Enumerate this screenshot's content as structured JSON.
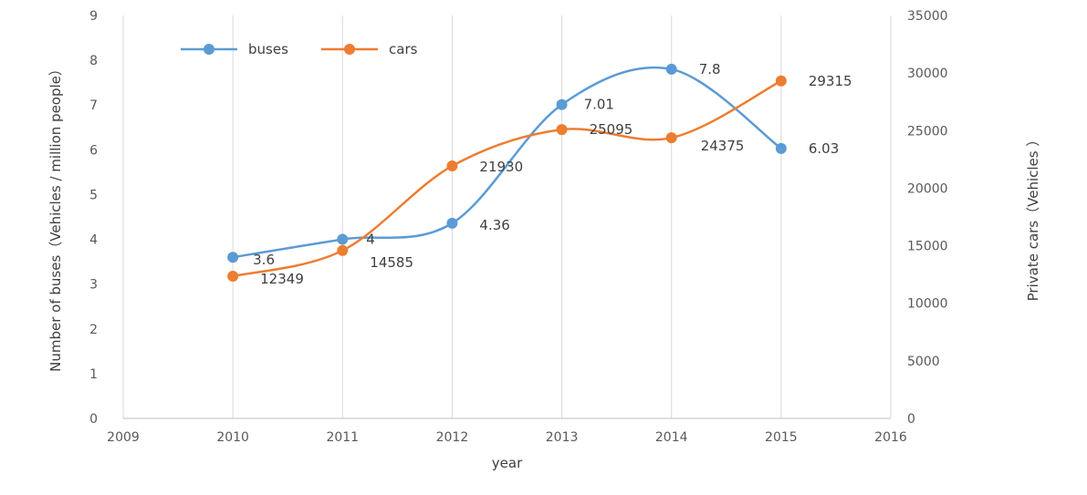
{
  "chart_data": {
    "type": "line",
    "xlabel": "year",
    "ylabel": "Number of buses（Vehicles / million people）",
    "y2label": "Private cars（Vehicles ）",
    "xlim": [
      2009,
      2016
    ],
    "xticks": [
      "2009",
      "2010",
      "2011",
      "2012",
      "2013",
      "2014",
      "2015",
      "2016"
    ],
    "ylim": [
      0,
      9
    ],
    "yticks": [
      "0",
      "1",
      "2",
      "3",
      "4",
      "5",
      "6",
      "7",
      "8",
      "9"
    ],
    "y2lim": [
      0,
      35000
    ],
    "y2ticks": [
      "0",
      "5000",
      "10000",
      "15000",
      "20000",
      "25000",
      "30000",
      "35000"
    ],
    "grid": "vertical",
    "legend_position": "top-left",
    "smooth": true,
    "series": [
      {
        "name": "buses",
        "axis": "left",
        "color": "#5B9BD5",
        "x": [
          2010,
          2011,
          2012,
          2013,
          2014,
          2015
        ],
        "values": [
          3.6,
          4,
          4.36,
          7.01,
          7.8,
          6.03
        ],
        "labels": [
          "3.6",
          "4",
          "4.36",
          "7.01",
          "7.8",
          "6.03"
        ]
      },
      {
        "name": "cars",
        "axis": "right",
        "color": "#ED7D31",
        "x": [
          2010,
          2011,
          2012,
          2013,
          2014,
          2015
        ],
        "values": [
          12349,
          14585,
          21930,
          25095,
          24375,
          29315
        ],
        "labels": [
          "12349",
          "14585",
          "21930",
          "25095",
          "24375",
          "29315"
        ]
      }
    ]
  }
}
